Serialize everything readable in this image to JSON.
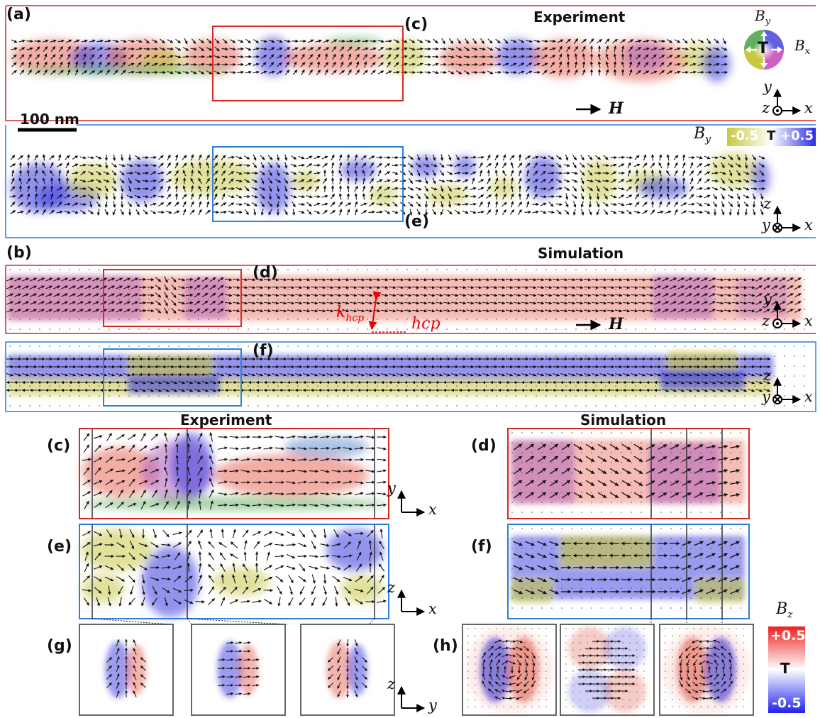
{
  "labels": {
    "a": "(a)",
    "b": "(b)",
    "c": "(c)",
    "d": "(d)",
    "e": "(e)",
    "f": "(f)",
    "g": "(g)",
    "h": "(h)"
  },
  "titles": {
    "experiment": "Experiment",
    "simulation": "Simulation"
  },
  "scalebar": "100 nm",
  "field": {
    "arrow": "→",
    "H": "H"
  },
  "axes": {
    "x": "x",
    "y": "y",
    "z": "z"
  },
  "colorwheel": {
    "center": "T",
    "bx": "B",
    "bx_sub": "x",
    "by": "B",
    "by_sub": "y"
  },
  "by_bar": {
    "label": "B",
    "sub": "y",
    "neg": "-0.5",
    "unit": "T",
    "pos": "+0.5"
  },
  "bz_bar": {
    "label": "B",
    "sub": "z",
    "pos": "+0.5",
    "unit": "T",
    "neg": "-0.5"
  },
  "hcp": {
    "k": "k",
    "k_sub": "hcp",
    "label": "hcp"
  },
  "colors": {
    "red_frame": "#d62828",
    "blue_frame": "#2f7fd8",
    "yellow": "#c8c84a",
    "blue": "#3a3ae0",
    "red": "#e86a5a",
    "magenta": "#b060c0"
  }
}
